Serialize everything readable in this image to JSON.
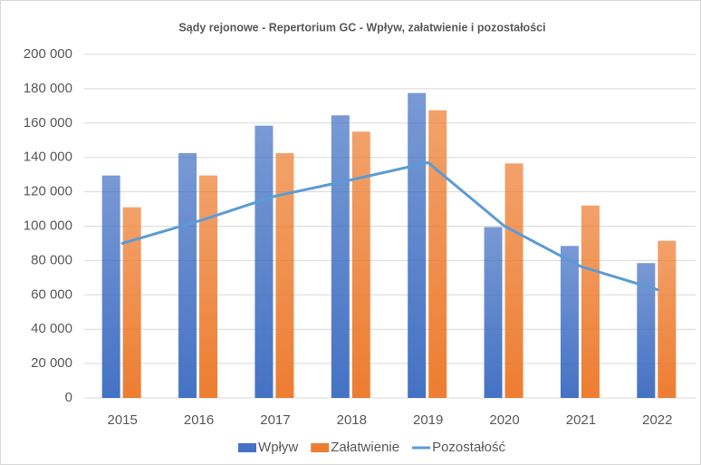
{
  "chart_data": {
    "type": "bar",
    "title": "Sądy rejonowe - Repertorium GC - Wpływ, załatwienie i pozostałości",
    "categories": [
      "2015",
      "2016",
      "2017",
      "2018",
      "2019",
      "2020",
      "2021",
      "2022"
    ],
    "series": [
      {
        "name": "Wpływ",
        "type": "bar",
        "color": "#4472c4",
        "values": [
          129500,
          142500,
          158500,
          164500,
          177500,
          99500,
          88500,
          78500
        ]
      },
      {
        "name": "Załatwienie",
        "type": "bar",
        "color": "#ed7d31",
        "values": [
          111000,
          129500,
          142500,
          155000,
          167500,
          136500,
          112000,
          91500
        ]
      },
      {
        "name": "Pozostałość",
        "type": "line",
        "color": "#5b9bd5",
        "values": [
          90000,
          103000,
          117500,
          127000,
          137000,
          100000,
          76500,
          63000
        ]
      }
    ],
    "ylim": [
      0,
      200000
    ],
    "yticks": [
      0,
      {
        "value": 20000,
        "label": "20 000"
      },
      {
        "value": 40000,
        "label": "40 000"
      },
      {
        "value": 60000,
        "label": "60 000"
      },
      {
        "value": 80000,
        "label": "80 000"
      },
      {
        "value": 100000,
        "label": "100 000"
      },
      {
        "value": 120000,
        "label": "120 000"
      },
      {
        "value": 140000,
        "label": "140 000"
      },
      {
        "value": 160000,
        "label": "160 000"
      },
      {
        "value": 180000,
        "label": "180 000"
      },
      {
        "value": {
          "value": 200000,
          "label": "200 000"
        },
        "label": "200 000"
      }
    ],
    "grid": true,
    "legend": "bottom"
  }
}
